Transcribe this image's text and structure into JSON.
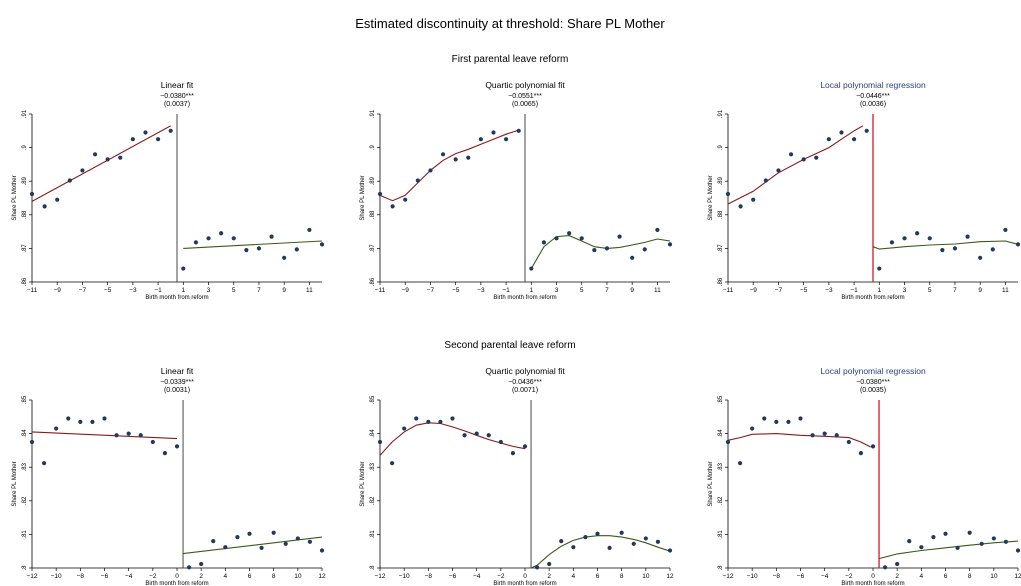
{
  "title": "Estimated discontinuity at threshold: Share PL Mother",
  "colors": {
    "dot": "#1f3a5f",
    "fit_pre": "#8b1a1a",
    "fit_post": "#3a5a1a",
    "cutoff_red": "#d6182a",
    "title_blue": "#2b3f7f"
  },
  "rows": [
    {
      "heading": "First parental leave reform",
      "ylim": [
        0.86,
        0.91
      ],
      "yticks": [
        0.86,
        0.87,
        0.88,
        0.89,
        0.9,
        0.91
      ],
      "yticklabels": [
        ".86",
        ".87",
        ".88",
        ".89",
        ".9",
        ".91"
      ],
      "xlim": [
        -11,
        12
      ],
      "xticks": [
        -11,
        -9,
        -7,
        -5,
        -3,
        -1,
        1,
        3,
        5,
        7,
        9,
        11
      ],
      "xticklabels": [
        "-11",
        "-9",
        "-7",
        "-5",
        "-3",
        "-1",
        "1",
        "3",
        "5",
        "7",
        "9",
        "11"
      ],
      "points": [
        {
          "x": -11,
          "y": 0.8862
        },
        {
          "x": -10,
          "y": 0.8825
        },
        {
          "x": -9,
          "y": 0.8845
        },
        {
          "x": -8,
          "y": 0.8902
        },
        {
          "x": -7,
          "y": 0.8932
        },
        {
          "x": -6,
          "y": 0.898
        },
        {
          "x": -5,
          "y": 0.8965
        },
        {
          "x": -4,
          "y": 0.897
        },
        {
          "x": -3,
          "y": 0.9025
        },
        {
          "x": -2,
          "y": 0.9045
        },
        {
          "x": -1,
          "y": 0.9025
        },
        {
          "x": 0,
          "y": 0.905
        },
        {
          "x": 1,
          "y": 0.864
        },
        {
          "x": 2,
          "y": 0.8718
        },
        {
          "x": 3,
          "y": 0.873
        },
        {
          "x": 4,
          "y": 0.8745
        },
        {
          "x": 5,
          "y": 0.873
        },
        {
          "x": 6,
          "y": 0.8695
        },
        {
          "x": 7,
          "y": 0.87
        },
        {
          "x": 8,
          "y": 0.8735
        },
        {
          "x": 9,
          "y": 0.8672
        },
        {
          "x": 10,
          "y": 0.8697
        },
        {
          "x": 11,
          "y": 0.8755
        },
        {
          "x": 12,
          "y": 0.8712
        }
      ],
      "panels": [
        {
          "type": "scatter",
          "subtitle": "Linear fit",
          "estimate": "−0.0380***",
          "se": "(0.0037)",
          "cutoff_color": "dark",
          "ylabel": "Share PL Mother",
          "xlabel": "Birth month from reform",
          "fit_pre": [
            {
              "x": -11,
              "y": 0.884
            },
            {
              "x": 0,
              "y": 0.9065
            }
          ],
          "fit_post": [
            {
              "x": 1,
              "y": 0.87
            },
            {
              "x": 12,
              "y": 0.8722
            }
          ]
        },
        {
          "type": "scatter",
          "subtitle": "Quartic polynomial fit",
          "estimate": "−0.0551***",
          "se": "(0.0065)",
          "cutoff_color": "dark",
          "ylabel": "Share PL Mother",
          "xlabel": "Birth month from reform",
          "fit_pre": [
            {
              "x": -11,
              "y": 0.8858
            },
            {
              "x": -10,
              "y": 0.8842
            },
            {
              "x": -9,
              "y": 0.8858
            },
            {
              "x": -8,
              "y": 0.8895
            },
            {
              "x": -7,
              "y": 0.8932
            },
            {
              "x": -6,
              "y": 0.8962
            },
            {
              "x": -5,
              "y": 0.8982
            },
            {
              "x": -4,
              "y": 0.8995
            },
            {
              "x": -3,
              "y": 0.901
            },
            {
              "x": -2,
              "y": 0.9025
            },
            {
              "x": -1,
              "y": 0.904
            },
            {
              "x": 0,
              "y": 0.9052
            }
          ],
          "fit_post": [
            {
              "x": 1,
              "y": 0.864
            },
            {
              "x": 2,
              "y": 0.8705
            },
            {
              "x": 3,
              "y": 0.8735
            },
            {
              "x": 4,
              "y": 0.8738
            },
            {
              "x": 5,
              "y": 0.8722
            },
            {
              "x": 6,
              "y": 0.8705
            },
            {
              "x": 7,
              "y": 0.87
            },
            {
              "x": 8,
              "y": 0.8703
            },
            {
              "x": 9,
              "y": 0.871
            },
            {
              "x": 10,
              "y": 0.8718
            },
            {
              "x": 11,
              "y": 0.8728
            },
            {
              "x": 12,
              "y": 0.8722
            }
          ]
        },
        {
          "type": "scatter",
          "subtitle": "Local polynomial regression",
          "estimate": "−0.0446***",
          "se": "(0.0036)",
          "cutoff_color": "red",
          "ylabel": "Share PL Mother",
          "xlabel": "Birth month from reform",
          "fit_pre": [
            {
              "x": -11,
              "y": 0.8832
            },
            {
              "x": -9,
              "y": 0.887
            },
            {
              "x": -7,
              "y": 0.8925
            },
            {
              "x": -5,
              "y": 0.8965
            },
            {
              "x": -3,
              "y": 0.9
            },
            {
              "x": -2,
              "y": 0.9025
            },
            {
              "x": -1,
              "y": 0.905
            },
            {
              "x": -0.3,
              "y": 0.9065
            }
          ],
          "fit_post": [
            {
              "x": 0.5,
              "y": 0.8705
            },
            {
              "x": 1,
              "y": 0.8698
            },
            {
              "x": 3,
              "y": 0.8705
            },
            {
              "x": 5,
              "y": 0.871
            },
            {
              "x": 7,
              "y": 0.8713
            },
            {
              "x": 9,
              "y": 0.872
            },
            {
              "x": 11,
              "y": 0.8722
            },
            {
              "x": 12,
              "y": 0.8712
            }
          ]
        }
      ]
    },
    {
      "heading": "Second parental leave reform",
      "ylim": [
        0.8,
        0.85
      ],
      "yticks": [
        0.8,
        0.81,
        0.82,
        0.83,
        0.84,
        0.85
      ],
      "yticklabels": [
        ".8",
        ".81",
        ".82",
        ".83",
        ".84",
        ".85"
      ],
      "xlim": [
        -12,
        12
      ],
      "xticks": [
        -12,
        -10,
        -8,
        -6,
        -4,
        -2,
        0,
        2,
        4,
        6,
        8,
        10,
        12
      ],
      "xticklabels": [
        "-12",
        "-10",
        "-8",
        "-6",
        "-4",
        "-2",
        "0",
        "2",
        "4",
        "6",
        "8",
        "10",
        "12"
      ],
      "points": [
        {
          "x": -12,
          "y": 0.8375
        },
        {
          "x": -11,
          "y": 0.8312
        },
        {
          "x": -10,
          "y": 0.8415
        },
        {
          "x": -9,
          "y": 0.8445
        },
        {
          "x": -8,
          "y": 0.8435
        },
        {
          "x": -7,
          "y": 0.8435
        },
        {
          "x": -6,
          "y": 0.8445
        },
        {
          "x": -5,
          "y": 0.8395
        },
        {
          "x": -4,
          "y": 0.84
        },
        {
          "x": -3,
          "y": 0.8395
        },
        {
          "x": -2,
          "y": 0.8375
        },
        {
          "x": -1,
          "y": 0.8342
        },
        {
          "x": 0,
          "y": 0.8362
        },
        {
          "x": 1,
          "y": 0.8002
        },
        {
          "x": 2,
          "y": 0.8012
        },
        {
          "x": 3,
          "y": 0.808
        },
        {
          "x": 4,
          "y": 0.8062
        },
        {
          "x": 5,
          "y": 0.8092
        },
        {
          "x": 6,
          "y": 0.8102
        },
        {
          "x": 7,
          "y": 0.806
        },
        {
          "x": 8,
          "y": 0.8105
        },
        {
          "x": 9,
          "y": 0.8072
        },
        {
          "x": 10,
          "y": 0.8088
        },
        {
          "x": 11,
          "y": 0.8078
        },
        {
          "x": 12,
          "y": 0.8052
        }
      ],
      "panels": [
        {
          "type": "scatter",
          "subtitle": "Linear fit",
          "estimate": "−0.0339***",
          "se": "(0.0031)",
          "cutoff_color": "dark",
          "ylabel": "Share PL Mother",
          "xlabel": "Birth month from reform",
          "fit_pre": [
            {
              "x": -12,
              "y": 0.8405
            },
            {
              "x": 0,
              "y": 0.8385
            }
          ],
          "fit_post": [
            {
              "x": 0.5,
              "y": 0.8043
            },
            {
              "x": 12,
              "y": 0.8092
            }
          ]
        },
        {
          "type": "scatter",
          "subtitle": "Quartic polynomial fit",
          "estimate": "−0.0436***",
          "se": "(0.0071)",
          "cutoff_color": "dark",
          "ylabel": "Share PL Mother",
          "xlabel": "Birth month from reform",
          "fit_pre": [
            {
              "x": -12,
              "y": 0.8335
            },
            {
              "x": -11,
              "y": 0.8375
            },
            {
              "x": -10,
              "y": 0.8405
            },
            {
              "x": -9,
              "y": 0.8425
            },
            {
              "x": -8,
              "y": 0.8432
            },
            {
              "x": -7,
              "y": 0.843
            },
            {
              "x": -6,
              "y": 0.842
            },
            {
              "x": -5,
              "y": 0.8408
            },
            {
              "x": -4,
              "y": 0.8395
            },
            {
              "x": -3,
              "y": 0.8382
            },
            {
              "x": -2,
              "y": 0.8372
            },
            {
              "x": -1,
              "y": 0.8362
            },
            {
              "x": 0,
              "y": 0.8355
            }
          ],
          "fit_post": [
            {
              "x": 0.5,
              "y": 0.8
            },
            {
              "x": 1,
              "y": 0.8008
            },
            {
              "x": 2,
              "y": 0.804
            },
            {
              "x": 3,
              "y": 0.8065
            },
            {
              "x": 4,
              "y": 0.8082
            },
            {
              "x": 5,
              "y": 0.8092
            },
            {
              "x": 6,
              "y": 0.8096
            },
            {
              "x": 7,
              "y": 0.8096
            },
            {
              "x": 8,
              "y": 0.8092
            },
            {
              "x": 9,
              "y": 0.8085
            },
            {
              "x": 10,
              "y": 0.8075
            },
            {
              "x": 11,
              "y": 0.8062
            },
            {
              "x": 12,
              "y": 0.805
            }
          ]
        },
        {
          "type": "scatter",
          "subtitle": "Local polynomial regression",
          "estimate": "−0.0380***",
          "se": "(0.0035)",
          "cutoff_color": "red",
          "ylabel": "Share PL Mother",
          "xlabel": "Birth month from reform",
          "fit_pre": [
            {
              "x": -12,
              "y": 0.838
            },
            {
              "x": -11,
              "y": 0.8388
            },
            {
              "x": -10,
              "y": 0.8398
            },
            {
              "x": -8,
              "y": 0.84
            },
            {
              "x": -6,
              "y": 0.8395
            },
            {
              "x": -4,
              "y": 0.8392
            },
            {
              "x": -2,
              "y": 0.8388
            },
            {
              "x": -1,
              "y": 0.8375
            },
            {
              "x": -0.2,
              "y": 0.836
            }
          ],
          "fit_post": [
            {
              "x": 0.5,
              "y": 0.8028
            },
            {
              "x": 2,
              "y": 0.8042
            },
            {
              "x": 4,
              "y": 0.8052
            },
            {
              "x": 6,
              "y": 0.806
            },
            {
              "x": 8,
              "y": 0.8068
            },
            {
              "x": 10,
              "y": 0.8075
            },
            {
              "x": 12,
              "y": 0.808
            }
          ]
        }
      ]
    }
  ]
}
